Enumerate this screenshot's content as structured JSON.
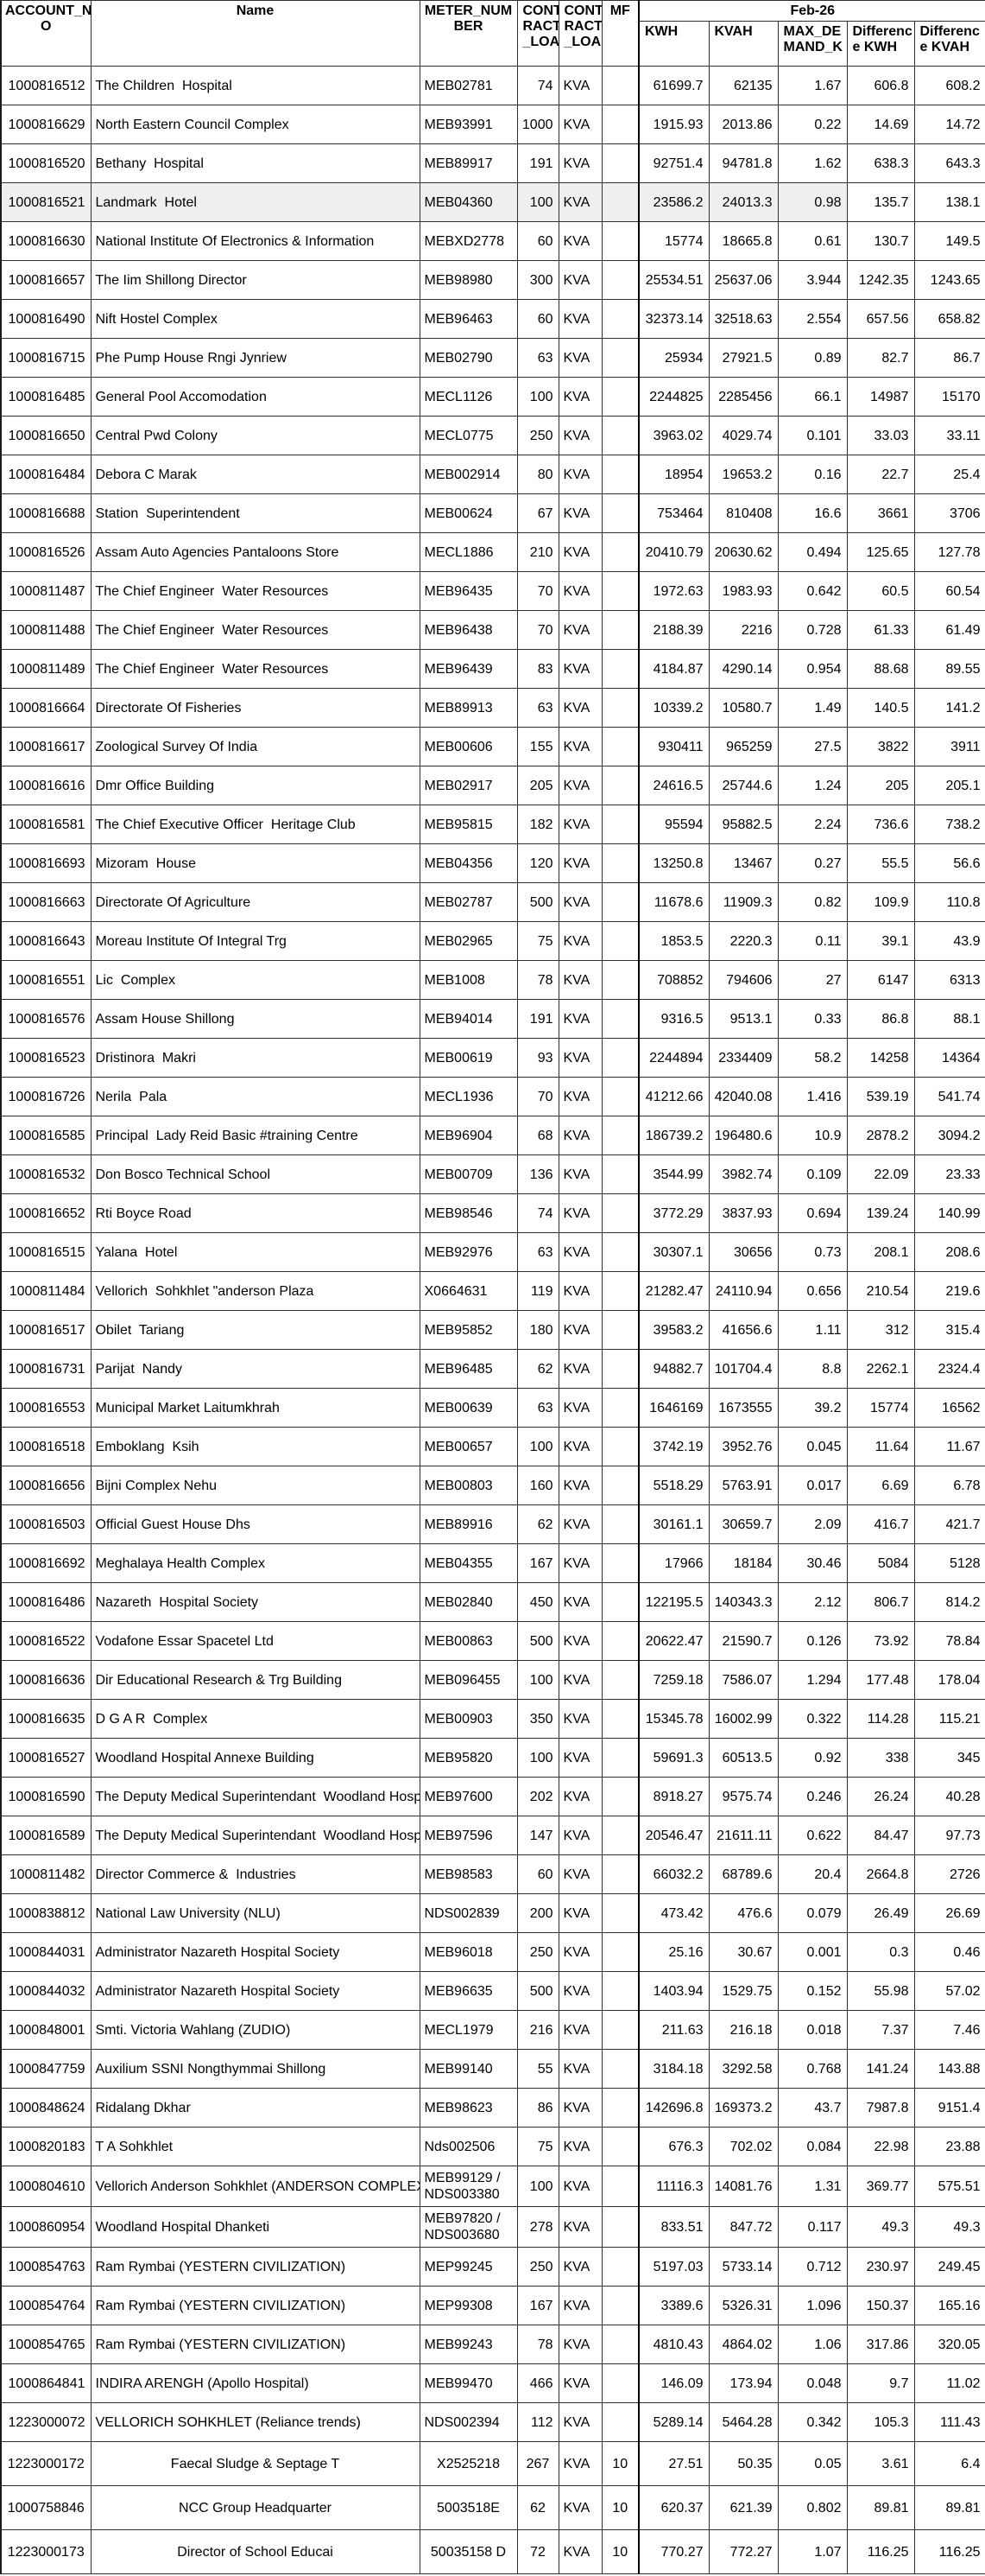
{
  "styles": {
    "shaded_row_color": "#efefef",
    "grid_color": "#2f2f2f",
    "thick_border_color": "#000000",
    "text_color": "#000000"
  },
  "header": {
    "account": "ACCOUNT_N\nO",
    "name": "Name",
    "meter": "METER_NUM\nBER",
    "contract1": "CONT\nRACT\n_LOA",
    "contract2": "CONT\nRACT\n_LOA",
    "mf": "MF",
    "month_group": "Feb-26",
    "sub": [
      "KWH",
      "KVAH",
      "MAX_DE\nMAND_K",
      "Differenc\ne KWH",
      "Differenc\ne KVAH"
    ]
  },
  "rows": [
    {
      "account": "1000816512",
      "name": "The Children  Hospital",
      "meter": "MEB02781",
      "load": "74",
      "unit": "KVA",
      "mf": "",
      "kwh": "61699.7",
      "kvah": "62135",
      "maxd": "1.67",
      "dkwh": "606.8",
      "dkvah": "608.2"
    },
    {
      "account": "1000816629",
      "name": "North Eastern Council Complex",
      "meter": "MEB93991",
      "load": "1000",
      "unit": "KVA",
      "mf": "",
      "kwh": "1915.93",
      "kvah": "2013.86",
      "maxd": "0.22",
      "dkwh": "14.69",
      "dkvah": "14.72"
    },
    {
      "account": "1000816520",
      "name": "Bethany  Hospital",
      "meter": "MEB89917",
      "load": "191",
      "unit": "KVA",
      "mf": "",
      "kwh": "92751.4",
      "kvah": "94781.8",
      "maxd": "1.62",
      "dkwh": "638.3",
      "dkvah": "643.3"
    },
    {
      "account": "1000816521",
      "name": "Landmark  Hotel",
      "meter": "MEB04360",
      "load": "100",
      "unit": "KVA",
      "mf": "",
      "kwh": "23586.2",
      "kvah": "24013.3",
      "maxd": "0.98",
      "dkwh": "135.7",
      "dkvah": "138.1",
      "shaded": true
    },
    {
      "account": "1000816630",
      "name": "National Institute Of Electronics & Information",
      "meter": "MEBXD2778",
      "load": "60",
      "unit": "KVA",
      "mf": "",
      "kwh": "15774",
      "kvah": "18665.8",
      "maxd": "0.61",
      "dkwh": "130.7",
      "dkvah": "149.5"
    },
    {
      "account": "1000816657",
      "name": "The Iim Shillong Director",
      "meter": "MEB98980",
      "load": "300",
      "unit": "KVA",
      "mf": "",
      "kwh": "25534.51",
      "kvah": "25637.06",
      "maxd": "3.944",
      "dkwh": "1242.35",
      "dkvah": "1243.65"
    },
    {
      "account": "1000816490",
      "name": "Nift Hostel Complex",
      "meter": "MEB96463",
      "load": "60",
      "unit": "KVA",
      "mf": "",
      "kwh": "32373.14",
      "kvah": "32518.63",
      "maxd": "2.554",
      "dkwh": "657.56",
      "dkvah": "658.82"
    },
    {
      "account": "1000816715",
      "name": "Phe Pump House Rngi Jynriew",
      "meter": "MEB02790",
      "load": "63",
      "unit": "KVA",
      "mf": "",
      "kwh": "25934",
      "kvah": "27921.5",
      "maxd": "0.89",
      "dkwh": "82.7",
      "dkvah": "86.7"
    },
    {
      "account": "1000816485",
      "name": "General Pool Accomodation",
      "meter": "MECL1126",
      "load": "100",
      "unit": "KVA",
      "mf": "",
      "kwh": "2244825",
      "kvah": "2285456",
      "maxd": "66.1",
      "dkwh": "14987",
      "dkvah": "15170"
    },
    {
      "account": "1000816650",
      "name": "Central Pwd Colony",
      "meter": "MECL0775",
      "load": "250",
      "unit": "KVA",
      "mf": "",
      "kwh": "3963.02",
      "kvah": "4029.74",
      "maxd": "0.101",
      "dkwh": "33.03",
      "dkvah": "33.11"
    },
    {
      "account": "1000816484",
      "name": "Debora C Marak",
      "meter": "MEB002914",
      "load": "80",
      "unit": "KVA",
      "mf": "",
      "kwh": "18954",
      "kvah": "19653.2",
      "maxd": "0.16",
      "dkwh": "22.7",
      "dkvah": "25.4"
    },
    {
      "account": "1000816688",
      "name": "Station  Superintendent",
      "meter": "MEB00624",
      "load": "67",
      "unit": "KVA",
      "mf": "",
      "kwh": "753464",
      "kvah": "810408",
      "maxd": "16.6",
      "dkwh": "3661",
      "dkvah": "3706"
    },
    {
      "account": "1000816526",
      "name": "Assam Auto Agencies Pantaloons Store",
      "meter": "MECL1886",
      "load": "210",
      "unit": "KVA",
      "mf": "",
      "kwh": "20410.79",
      "kvah": "20630.62",
      "maxd": "0.494",
      "dkwh": "125.65",
      "dkvah": "127.78"
    },
    {
      "account": "1000811487",
      "name": "The Chief Engineer  Water Resources",
      "meter": "MEB96435",
      "load": "70",
      "unit": "KVA",
      "mf": "",
      "kwh": "1972.63",
      "kvah": "1983.93",
      "maxd": "0.642",
      "dkwh": "60.5",
      "dkvah": "60.54"
    },
    {
      "account": "1000811488",
      "name": "The Chief Engineer  Water Resources",
      "meter": "MEB96438",
      "load": "70",
      "unit": "KVA",
      "mf": "",
      "kwh": "2188.39",
      "kvah": "2216",
      "maxd": "0.728",
      "dkwh": "61.33",
      "dkvah": "61.49"
    },
    {
      "account": "1000811489",
      "name": "The Chief Engineer  Water Resources",
      "meter": "MEB96439",
      "load": "83",
      "unit": "KVA",
      "mf": "",
      "kwh": "4184.87",
      "kvah": "4290.14",
      "maxd": "0.954",
      "dkwh": "88.68",
      "dkvah": "89.55"
    },
    {
      "account": "1000816664",
      "name": "Directorate Of Fisheries",
      "meter": "MEB89913",
      "load": "63",
      "unit": "KVA",
      "mf": "",
      "kwh": "10339.2",
      "kvah": "10580.7",
      "maxd": "1.49",
      "dkwh": "140.5",
      "dkvah": "141.2"
    },
    {
      "account": "1000816617",
      "name": "Zoological Survey Of India",
      "meter": "MEB00606",
      "load": "155",
      "unit": "KVA",
      "mf": "",
      "kwh": "930411",
      "kvah": "965259",
      "maxd": "27.5",
      "dkwh": "3822",
      "dkvah": "3911"
    },
    {
      "account": "1000816616",
      "name": "Dmr Office Building",
      "meter": "MEB02917",
      "load": "205",
      "unit": "KVA",
      "mf": "",
      "kwh": "24616.5",
      "kvah": "25744.6",
      "maxd": "1.24",
      "dkwh": "205",
      "dkvah": "205.1"
    },
    {
      "account": "1000816581",
      "name": "The Chief Executive Officer  Heritage Club",
      "meter": "MEB95815",
      "load": "182",
      "unit": "KVA",
      "mf": "",
      "kwh": "95594",
      "kvah": "95882.5",
      "maxd": "2.24",
      "dkwh": "736.6",
      "dkvah": "738.2"
    },
    {
      "account": "1000816693",
      "name": "Mizoram  House",
      "meter": "MEB04356",
      "load": "120",
      "unit": "KVA",
      "mf": "",
      "kwh": "13250.8",
      "kvah": "13467",
      "maxd": "0.27",
      "dkwh": "55.5",
      "dkvah": "56.6"
    },
    {
      "account": "1000816663",
      "name": "Directorate Of Agriculture",
      "meter": "MEB02787",
      "load": "500",
      "unit": "KVA",
      "mf": "",
      "kwh": "11678.6",
      "kvah": "11909.3",
      "maxd": "0.82",
      "dkwh": "109.9",
      "dkvah": "110.8"
    },
    {
      "account": "1000816643",
      "name": "Moreau Institute Of Integral Trg",
      "meter": "MEB02965",
      "load": "75",
      "unit": "KVA",
      "mf": "",
      "kwh": "1853.5",
      "kvah": "2220.3",
      "maxd": "0.11",
      "dkwh": "39.1",
      "dkvah": "43.9"
    },
    {
      "account": "1000816551",
      "name": "Lic  Complex",
      "meter": "MEB1008",
      "load": "78",
      "unit": "KVA",
      "mf": "",
      "kwh": "708852",
      "kvah": "794606",
      "maxd": "27",
      "dkwh": "6147",
      "dkvah": "6313"
    },
    {
      "account": "1000816576",
      "name": "Assam House Shillong",
      "meter": "MEB94014",
      "load": "191",
      "unit": "KVA",
      "mf": "",
      "kwh": "9316.5",
      "kvah": "9513.1",
      "maxd": "0.33",
      "dkwh": "86.8",
      "dkvah": "88.1"
    },
    {
      "account": "1000816523",
      "name": "Dristinora  Makri",
      "meter": "MEB00619",
      "load": "93",
      "unit": "KVA",
      "mf": "",
      "kwh": "2244894",
      "kvah": "2334409",
      "maxd": "58.2",
      "dkwh": "14258",
      "dkvah": "14364"
    },
    {
      "account": "1000816726",
      "name": "Nerila  Pala",
      "meter": "MECL1936",
      "load": "70",
      "unit": "KVA",
      "mf": "",
      "kwh": "41212.66",
      "kvah": "42040.08",
      "maxd": "1.416",
      "dkwh": "539.19",
      "dkvah": "541.74"
    },
    {
      "account": "1000816585",
      "name": "Principal  Lady Reid Basic #training Centre",
      "meter": "MEB96904",
      "load": "68",
      "unit": "KVA",
      "mf": "",
      "kwh": "186739.2",
      "kvah": "196480.6",
      "maxd": "10.9",
      "dkwh": "2878.2",
      "dkvah": "3094.2"
    },
    {
      "account": "1000816532",
      "name": "Don Bosco Technical School",
      "meter": "MEB00709",
      "load": "136",
      "unit": "KVA",
      "mf": "",
      "kwh": "3544.99",
      "kvah": "3982.74",
      "maxd": "0.109",
      "dkwh": "22.09",
      "dkvah": "23.33"
    },
    {
      "account": "1000816652",
      "name": "Rti Boyce Road",
      "meter": "MEB98546",
      "load": "74",
      "unit": "KVA",
      "mf": "",
      "kwh": "3772.29",
      "kvah": "3837.93",
      "maxd": "0.694",
      "dkwh": "139.24",
      "dkvah": "140.99"
    },
    {
      "account": "1000816515",
      "name": "Yalana  Hotel",
      "meter": "MEB92976",
      "load": "63",
      "unit": "KVA",
      "mf": "",
      "kwh": "30307.1",
      "kvah": "30656",
      "maxd": "0.73",
      "dkwh": "208.1",
      "dkvah": "208.6"
    },
    {
      "account": "1000811484",
      "name": "Vellorich  Sohkhlet \"anderson Plaza",
      "meter": "X0664631",
      "load": "119",
      "unit": "KVA",
      "mf": "",
      "kwh": "21282.47",
      "kvah": "24110.94",
      "maxd": "0.656",
      "dkwh": "210.54",
      "dkvah": "219.6"
    },
    {
      "account": "1000816517",
      "name": "Obilet  Tariang",
      "meter": "MEB95852",
      "load": "180",
      "unit": "KVA",
      "mf": "",
      "kwh": "39583.2",
      "kvah": "41656.6",
      "maxd": "1.11",
      "dkwh": "312",
      "dkvah": "315.4"
    },
    {
      "account": "1000816731",
      "name": "Parijat  Nandy",
      "meter": "MEB96485",
      "load": "62",
      "unit": "KVA",
      "mf": "",
      "kwh": "94882.7",
      "kvah": "101704.4",
      "maxd": "8.8",
      "dkwh": "2262.1",
      "dkvah": "2324.4"
    },
    {
      "account": "1000816553",
      "name": "Municipal Market Laitumkhrah",
      "meter": "MEB00639",
      "load": "63",
      "unit": "KVA",
      "mf": "",
      "kwh": "1646169",
      "kvah": "1673555",
      "maxd": "39.2",
      "dkwh": "15774",
      "dkvah": "16562"
    },
    {
      "account": "1000816518",
      "name": "Emboklang  Ksih",
      "meter": "MEB00657",
      "load": "100",
      "unit": "KVA",
      "mf": "",
      "kwh": "3742.19",
      "kvah": "3952.76",
      "maxd": "0.045",
      "dkwh": "11.64",
      "dkvah": "11.67"
    },
    {
      "account": "1000816656",
      "name": "Bijni Complex Nehu",
      "meter": "MEB00803",
      "load": "160",
      "unit": "KVA",
      "mf": "",
      "kwh": "5518.29",
      "kvah": "5763.91",
      "maxd": "0.017",
      "dkwh": "6.69",
      "dkvah": "6.78"
    },
    {
      "account": "1000816503",
      "name": "Official Guest House Dhs",
      "meter": "MEB89916",
      "load": "62",
      "unit": "KVA",
      "mf": "",
      "kwh": "30161.1",
      "kvah": "30659.7",
      "maxd": "2.09",
      "dkwh": "416.7",
      "dkvah": "421.7"
    },
    {
      "account": "1000816692",
      "name": "Meghalaya Health Complex",
      "meter": "MEB04355",
      "load": "167",
      "unit": "KVA",
      "mf": "",
      "kwh": "17966",
      "kvah": "18184",
      "maxd": "30.46",
      "dkwh": "5084",
      "dkvah": "5128"
    },
    {
      "account": "1000816486",
      "name": "Nazareth  Hospital Society",
      "meter": "MEB02840",
      "load": "450",
      "unit": "KVA",
      "mf": "",
      "kwh": "122195.5",
      "kvah": "140343.3",
      "maxd": "2.12",
      "dkwh": "806.7",
      "dkvah": "814.2"
    },
    {
      "account": "1000816522",
      "name": "Vodafone Essar Spacetel Ltd",
      "meter": "MEB00863",
      "load": "500",
      "unit": "KVA",
      "mf": "",
      "kwh": "20622.47",
      "kvah": "21590.7",
      "maxd": "0.126",
      "dkwh": "73.92",
      "dkvah": "78.84"
    },
    {
      "account": "1000816636",
      "name": "Dir Educational Research & Trg Building",
      "meter": "MEB096455",
      "load": "100",
      "unit": "KVA",
      "mf": "",
      "kwh": "7259.18",
      "kvah": "7586.07",
      "maxd": "1.294",
      "dkwh": "177.48",
      "dkvah": "178.04"
    },
    {
      "account": "1000816635",
      "name": "D G A R  Complex",
      "meter": "MEB00903",
      "load": "350",
      "unit": "KVA",
      "mf": "",
      "kwh": "15345.78",
      "kvah": "16002.99",
      "maxd": "0.322",
      "dkwh": "114.28",
      "dkvah": "115.21"
    },
    {
      "account": "1000816527",
      "name": "Woodland Hospital Annexe Building",
      "meter": "MEB95820",
      "load": "100",
      "unit": "KVA",
      "mf": "",
      "kwh": "59691.3",
      "kvah": "60513.5",
      "maxd": "0.92",
      "dkwh": "338",
      "dkvah": "345"
    },
    {
      "account": "1000816590",
      "name": "The Deputy Medical Superintendant  Woodland Hospital",
      "meter": "MEB97600",
      "load": "202",
      "unit": "KVA",
      "mf": "",
      "kwh": "8918.27",
      "kvah": "9575.74",
      "maxd": "0.246",
      "dkwh": "26.24",
      "dkvah": "40.28"
    },
    {
      "account": "1000816589",
      "name": "The Deputy Medical Superintendant  Woodland Hospital",
      "meter": "MEB97596",
      "load": "147",
      "unit": "KVA",
      "mf": "",
      "kwh": "20546.47",
      "kvah": "21611.11",
      "maxd": "0.622",
      "dkwh": "84.47",
      "dkvah": "97.73"
    },
    {
      "account": "1000811482",
      "name": "Director Commerce &  Industries",
      "meter": "MEB98583",
      "load": "60",
      "unit": "KVA",
      "mf": "",
      "kwh": "66032.2",
      "kvah": "68789.6",
      "maxd": "20.4",
      "dkwh": "2664.8",
      "dkvah": "2726"
    },
    {
      "account": "1000838812",
      "name": "National Law University (NLU)",
      "meter": "NDS002839",
      "load": "200",
      "unit": "KVA",
      "mf": "",
      "kwh": "473.42",
      "kvah": "476.6",
      "maxd": "0.079",
      "dkwh": "26.49",
      "dkvah": "26.69"
    },
    {
      "account": "1000844031",
      "name": "Administrator Nazareth Hospital Society",
      "meter": "MEB96018",
      "load": "250",
      "unit": "KVA",
      "mf": "",
      "kwh": "25.16",
      "kvah": "30.67",
      "maxd": "0.001",
      "dkwh": "0.3",
      "dkvah": "0.46"
    },
    {
      "account": "1000844032",
      "name": "Administrator Nazareth Hospital Society",
      "meter": "MEB96635",
      "load": "500",
      "unit": "KVA",
      "mf": "",
      "kwh": "1403.94",
      "kvah": "1529.75",
      "maxd": "0.152",
      "dkwh": "55.98",
      "dkvah": "57.02"
    },
    {
      "account": "1000848001",
      "name": "Smti. Victoria Wahlang (ZUDIO)",
      "meter": "MECL1979",
      "load": "216",
      "unit": "KVA",
      "mf": "",
      "kwh": "211.63",
      "kvah": "216.18",
      "maxd": "0.018",
      "dkwh": "7.37",
      "dkvah": "7.46"
    },
    {
      "account": "1000847759",
      "name": "Auxilium SSNI Nongthymmai Shillong",
      "meter": "MEB99140",
      "load": "55",
      "unit": "KVA",
      "mf": "",
      "kwh": "3184.18",
      "kvah": "3292.58",
      "maxd": "0.768",
      "dkwh": "141.24",
      "dkvah": "143.88"
    },
    {
      "account": "1000848624",
      "name": "Ridalang Dkhar",
      "meter": "MEB98623",
      "load": "86",
      "unit": "KVA",
      "mf": "",
      "kwh": "142696.8",
      "kvah": "169373.2",
      "maxd": "43.7",
      "dkwh": "7987.8",
      "dkvah": "9151.4"
    },
    {
      "account": "1000820183",
      "name": "T A Sohkhlet",
      "meter": "Nds002506",
      "load": "75",
      "unit": "KVA",
      "mf": "",
      "kwh": "676.3",
      "kvah": "702.02",
      "maxd": "0.084",
      "dkwh": "22.98",
      "dkvah": "23.88"
    },
    {
      "account": "1000804610",
      "name": "Vellorich Anderson Sohkhlet (ANDERSON COMPLEX)",
      "meter": "MEB99129 /\nNDS003380",
      "load": "100",
      "unit": "KVA",
      "mf": "",
      "kwh": "11116.3",
      "kvah": "14081.76",
      "maxd": "1.31",
      "dkwh": "369.77",
      "dkvah": "575.51",
      "tall": true
    },
    {
      "account": "1000860954",
      "name": "Woodland Hospital Dhanketi",
      "meter": "MEB97820 /\nNDS003680",
      "load": "278",
      "unit": "KVA",
      "mf": "",
      "kwh": "833.51",
      "kvah": "847.72",
      "maxd": "0.117",
      "dkwh": "49.3",
      "dkvah": "49.3",
      "tall": true
    },
    {
      "account": "1000854763",
      "name": "Ram Rymbai (YESTERN CIVILIZATION)",
      "meter": "MEP99245",
      "load": "250",
      "unit": "KVA",
      "mf": "",
      "kwh": "5197.03",
      "kvah": "5733.14",
      "maxd": "0.712",
      "dkwh": "230.97",
      "dkvah": "249.45"
    },
    {
      "account": "1000854764",
      "name": "Ram Rymbai (YESTERN CIVILIZATION)",
      "meter": "MEP99308",
      "load": "167",
      "unit": "KVA",
      "mf": "",
      "kwh": "3389.6",
      "kvah": "5326.31",
      "maxd": "1.096",
      "dkwh": "150.37",
      "dkvah": "165.16"
    },
    {
      "account": "1000854765",
      "name": "Ram Rymbai (YESTERN CIVILIZATION)",
      "meter": "MEB99243",
      "load": "78",
      "unit": "KVA",
      "mf": "",
      "kwh": "4810.43",
      "kvah": "4864.02",
      "maxd": "1.06",
      "dkwh": "317.86",
      "dkvah": "320.05"
    },
    {
      "account": "1000864841",
      "name": "INDIRA ARENGH (Apollo Hospital)",
      "meter": "MEB99470",
      "load": "466",
      "unit": "KVA",
      "mf": "",
      "kwh": "146.09",
      "kvah": "173.94",
      "maxd": "0.048",
      "dkwh": "9.7",
      "dkvah": "11.02"
    },
    {
      "account": "1223000072",
      "name": "VELLORICH SOHKHLET (Reliance trends)",
      "meter": "NDS002394",
      "load": "112",
      "unit": "KVA",
      "mf": "",
      "kwh": "5289.14",
      "kvah": "5464.28",
      "maxd": "0.342",
      "dkwh": "105.3",
      "dkvah": "111.43"
    },
    {
      "account": "1223000172",
      "name": "Faecal Sludge & Septage T",
      "meter": "X2525218",
      "load": "267",
      "unit": "KVA",
      "mf": "10",
      "kwh": "27.51",
      "kvah": "50.35",
      "maxd": "0.05",
      "dkwh": "3.61",
      "dkvah": "6.4",
      "footer": true
    },
    {
      "account": "1000758846",
      "name": "NCC Group Headquarter",
      "meter": "5003518E",
      "load": "62",
      "unit": "KVA",
      "mf": "10",
      "kwh": "620.37",
      "kvah": "621.39",
      "maxd": "0.802",
      "dkwh": "89.81",
      "dkvah": "89.81",
      "footer": true
    },
    {
      "account": "1223000173",
      "name": "Director of School Educai",
      "meter": "50035158 D",
      "load": "72",
      "unit": "KVA",
      "mf": "10",
      "kwh": "770.27",
      "kvah": "772.27",
      "maxd": "1.07",
      "dkwh": "116.25",
      "dkvah": "116.25",
      "footer": true
    }
  ]
}
